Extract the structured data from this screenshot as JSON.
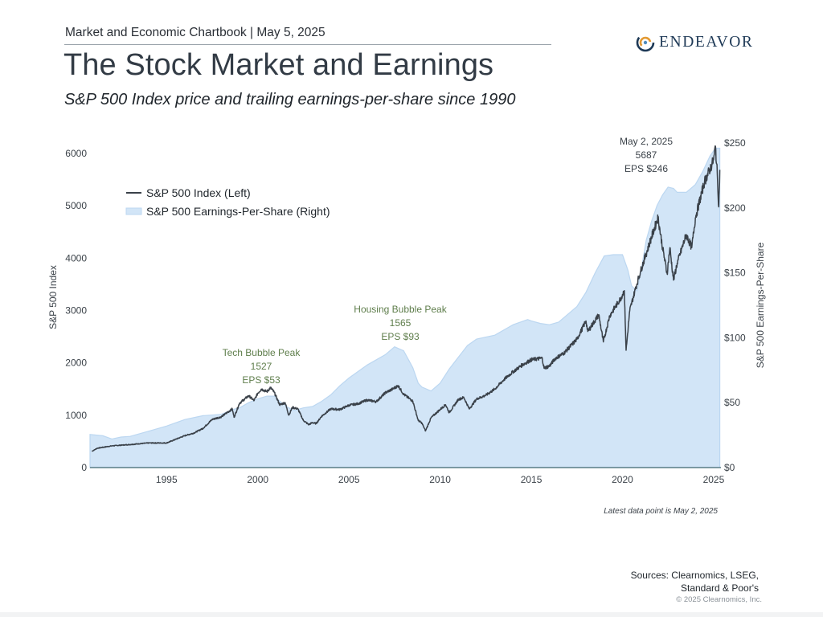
{
  "header": {
    "chartbook": "Market and Economic Chartbook | May 5, 2025",
    "title": "The Stock Market and Earnings",
    "subtitle": "S&P 500 Index price and trailing earnings-per-share since 1990",
    "logo_text": "ENDEAVOR"
  },
  "footer": {
    "latest_note": "Latest data point is May 2, 2025",
    "sources_line1": "Sources: Clearnomics, LSEG,",
    "sources_line2": "Standard & Poor's",
    "copyright": "© 2025 Clearnomics, Inc."
  },
  "colors": {
    "index_line": "#3a4149",
    "eps_fill": "#d2e5f7",
    "eps_edge": "#bcd7f1",
    "annotation_green": "#5f7e4c",
    "axis_text": "#3b4249",
    "baseline": "#5c7f86"
  },
  "chart_data": {
    "type": "line",
    "x_range": [
      1990.8,
      2025.4
    ],
    "x_ticks": [
      1995,
      2000,
      2005,
      2010,
      2015,
      2020,
      2025
    ],
    "left_axis": {
      "label": "S&P 500 Index",
      "range": [
        0,
        6200
      ],
      "ticks": [
        0,
        1000,
        2000,
        3000,
        4000,
        5000,
        6000
      ]
    },
    "right_axis": {
      "label": "S&P 500 Earnings-Per-Share",
      "range": [
        0,
        250
      ],
      "ticks": [
        "$0",
        "$50",
        "$100",
        "$150",
        "$200",
        "$250"
      ],
      "tick_values": [
        0,
        50,
        100,
        150,
        200,
        250
      ]
    },
    "legend": {
      "position": "top-left",
      "items": [
        "S&P 500 Index (Left)",
        "S&P 500 Earnings-Per-Share (Right)"
      ]
    },
    "series": [
      {
        "name": "S&P 500 Index (Left)",
        "axis": "left",
        "style": "line",
        "points": [
          [
            1990.9,
            310
          ],
          [
            1991.2,
            370
          ],
          [
            1992.0,
            415
          ],
          [
            1993.0,
            440
          ],
          [
            1994.0,
            470
          ],
          [
            1995.0,
            470
          ],
          [
            1995.5,
            540
          ],
          [
            1996.0,
            610
          ],
          [
            1996.5,
            660
          ],
          [
            1997.0,
            750
          ],
          [
            1997.5,
            920
          ],
          [
            1998.0,
            970
          ],
          [
            1998.6,
            1120
          ],
          [
            1998.7,
            960
          ],
          [
            1999.0,
            1230
          ],
          [
            1999.5,
            1370
          ],
          [
            1999.8,
            1280
          ],
          [
            2000.0,
            1420
          ],
          [
            2000.2,
            1500
          ],
          [
            2000.5,
            1450
          ],
          [
            2000.7,
            1527
          ],
          [
            2000.9,
            1440
          ],
          [
            2001.2,
            1200
          ],
          [
            2001.5,
            1240
          ],
          [
            2001.7,
            1000
          ],
          [
            2001.9,
            1150
          ],
          [
            2002.2,
            1120
          ],
          [
            2002.5,
            900
          ],
          [
            2002.8,
            820
          ],
          [
            2003.0,
            860
          ],
          [
            2003.2,
            840
          ],
          [
            2003.5,
            980
          ],
          [
            2004.0,
            1120
          ],
          [
            2004.5,
            1110
          ],
          [
            2005.0,
            1190
          ],
          [
            2005.5,
            1220
          ],
          [
            2006.0,
            1290
          ],
          [
            2006.5,
            1260
          ],
          [
            2007.0,
            1430
          ],
          [
            2007.4,
            1500
          ],
          [
            2007.7,
            1565
          ],
          [
            2008.0,
            1400
          ],
          [
            2008.5,
            1270
          ],
          [
            2008.8,
            900
          ],
          [
            2009.0,
            850
          ],
          [
            2009.2,
            700
          ],
          [
            2009.5,
            950
          ],
          [
            2010.0,
            1110
          ],
          [
            2010.3,
            1200
          ],
          [
            2010.5,
            1050
          ],
          [
            2011.0,
            1300
          ],
          [
            2011.3,
            1340
          ],
          [
            2011.6,
            1120
          ],
          [
            2012.0,
            1310
          ],
          [
            2012.5,
            1380
          ],
          [
            2013.0,
            1500
          ],
          [
            2013.5,
            1680
          ],
          [
            2014.0,
            1830
          ],
          [
            2014.5,
            1960
          ],
          [
            2015.0,
            2060
          ],
          [
            2015.6,
            2090
          ],
          [
            2015.7,
            1900
          ],
          [
            2016.0,
            1940
          ],
          [
            2016.3,
            2080
          ],
          [
            2016.8,
            2190
          ],
          [
            2017.5,
            2450
          ],
          [
            2018.0,
            2800
          ],
          [
            2018.1,
            2600
          ],
          [
            2018.7,
            2920
          ],
          [
            2018.95,
            2400
          ],
          [
            2019.3,
            2900
          ],
          [
            2019.9,
            3230
          ],
          [
            2020.1,
            3380
          ],
          [
            2020.2,
            2240
          ],
          [
            2020.4,
            3000
          ],
          [
            2020.7,
            3400
          ],
          [
            2021.0,
            3760
          ],
          [
            2021.5,
            4300
          ],
          [
            2021.95,
            4780
          ],
          [
            2022.2,
            4200
          ],
          [
            2022.45,
            3700
          ],
          [
            2022.6,
            4200
          ],
          [
            2022.8,
            3580
          ],
          [
            2023.0,
            3900
          ],
          [
            2023.5,
            4450
          ],
          [
            2023.8,
            4200
          ],
          [
            2024.0,
            4770
          ],
          [
            2024.5,
            5460
          ],
          [
            2024.8,
            5700
          ],
          [
            2025.0,
            5880
          ],
          [
            2025.1,
            6140
          ],
          [
            2025.2,
            5600
          ],
          [
            2025.28,
            4980
          ],
          [
            2025.34,
            5687
          ]
        ]
      },
      {
        "name": "S&P 500 Earnings-Per-Share (Right)",
        "axis": "right",
        "style": "area",
        "points": [
          [
            1990.8,
            25.5
          ],
          [
            1991.5,
            24.5
          ],
          [
            1992.0,
            22
          ],
          [
            1992.5,
            23.5
          ],
          [
            1993.0,
            24
          ],
          [
            1994.0,
            28
          ],
          [
            1995.0,
            32
          ],
          [
            1996.0,
            37
          ],
          [
            1997.0,
            40
          ],
          [
            1998.0,
            41
          ],
          [
            1998.7,
            45
          ],
          [
            1999.0,
            46
          ],
          [
            1999.5,
            50
          ],
          [
            2000.0,
            53
          ],
          [
            2000.5,
            55
          ],
          [
            2000.9,
            55
          ],
          [
            2001.3,
            50
          ],
          [
            2001.7,
            46
          ],
          [
            2002.0,
            44
          ],
          [
            2002.5,
            46
          ],
          [
            2003.0,
            47
          ],
          [
            2003.5,
            51
          ],
          [
            2004.0,
            56
          ],
          [
            2004.5,
            63
          ],
          [
            2005.0,
            69
          ],
          [
            2006.0,
            79
          ],
          [
            2007.0,
            87
          ],
          [
            2007.5,
            93
          ],
          [
            2008.0,
            90
          ],
          [
            2008.5,
            77
          ],
          [
            2008.8,
            65
          ],
          [
            2009.0,
            62
          ],
          [
            2009.5,
            59
          ],
          [
            2010.0,
            65
          ],
          [
            2010.5,
            76
          ],
          [
            2011.0,
            85
          ],
          [
            2011.5,
            94
          ],
          [
            2012.0,
            99
          ],
          [
            2013.0,
            102
          ],
          [
            2014.0,
            110
          ],
          [
            2014.8,
            114
          ],
          [
            2015.0,
            113
          ],
          [
            2015.5,
            111
          ],
          [
            2016.0,
            110
          ],
          [
            2016.5,
            112
          ],
          [
            2017.0,
            118
          ],
          [
            2017.5,
            124
          ],
          [
            2018.0,
            135
          ],
          [
            2018.5,
            150
          ],
          [
            2019.0,
            163
          ],
          [
            2019.5,
            164
          ],
          [
            2020.0,
            164
          ],
          [
            2020.3,
            152
          ],
          [
            2020.5,
            140
          ],
          [
            2020.8,
            136
          ],
          [
            2021.0,
            150
          ],
          [
            2021.3,
            175
          ],
          [
            2021.6,
            190
          ],
          [
            2021.9,
            202
          ],
          [
            2022.2,
            210
          ],
          [
            2022.5,
            216
          ],
          [
            2022.8,
            215
          ],
          [
            2023.0,
            212
          ],
          [
            2023.5,
            212
          ],
          [
            2024.0,
            218
          ],
          [
            2024.4,
            228
          ],
          [
            2024.8,
            240
          ],
          [
            2025.1,
            246
          ],
          [
            2025.34,
            246
          ]
        ]
      }
    ],
    "annotations": [
      {
        "lines": [
          "Tech Bubble Peak",
          "1527",
          "EPS $53"
        ],
        "x": 2000.7,
        "y": 1527,
        "color": "green"
      },
      {
        "lines": [
          "Housing Bubble Peak",
          "1565",
          "EPS $93"
        ],
        "x": 2007.7,
        "y": 1565,
        "color": "green"
      },
      {
        "lines": [
          "May 2, 2025",
          "5687",
          "EPS $246"
        ],
        "x": 2025.34,
        "y": 6140,
        "color": "gray"
      }
    ]
  }
}
